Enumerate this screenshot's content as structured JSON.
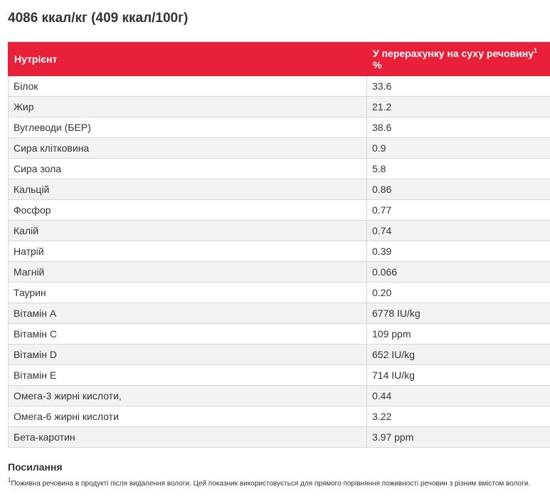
{
  "energy_title": "4086 ккал/кг (409 ккал/100г)",
  "table": {
    "headers": {
      "nutrient": "Нутрієнт",
      "dry_matter": "У перерахунку на суху речовину",
      "dry_matter_sup": "1",
      "dry_matter_unit": "%"
    },
    "rows": [
      {
        "name": "Білок",
        "value": "33.6"
      },
      {
        "name": "Жир",
        "value": "21.2"
      },
      {
        "name": "Вуглеводи (БЕР)",
        "value": "38.6"
      },
      {
        "name": "Сира клітковина",
        "value": "0.9"
      },
      {
        "name": "Сира зола",
        "value": "5.8"
      },
      {
        "name": "Кальцій",
        "value": "0.86"
      },
      {
        "name": "Фосфор",
        "value": "0.77"
      },
      {
        "name": "Калій",
        "value": "0.74"
      },
      {
        "name": "Натрій",
        "value": "0.39"
      },
      {
        "name": "Магній",
        "value": "0.066"
      },
      {
        "name": "Таурин",
        "value": "0.20"
      },
      {
        "name": "Вітамін А",
        "value": "6778 IU/kg"
      },
      {
        "name": "Вітамін С",
        "value": "109 ppm"
      },
      {
        "name": "Вітамін D",
        "value": "652 IU/kg"
      },
      {
        "name": "Вітамін Е",
        "value": "714 IU/kg"
      },
      {
        "name": "Омега-3 жирні кислоти,",
        "value": "0.44"
      },
      {
        "name": "Омега-6 жирні кислоти",
        "value": "3.22"
      },
      {
        "name": "Бета-каротин",
        "value": "3.97 ppm"
      }
    ]
  },
  "references": {
    "title": "Посилання",
    "footnote_marker": "1",
    "footnote_text": "Поживна речовина в продукті після видалення вологи. Цей показник використовується для прямого порівняння поживності речовин з різним вмістом вологи."
  },
  "colors": {
    "header_bg": "#e8203a",
    "header_text": "#ffffff",
    "row_alt_bg": "#f2f2f2",
    "border": "#d6d6d6"
  }
}
